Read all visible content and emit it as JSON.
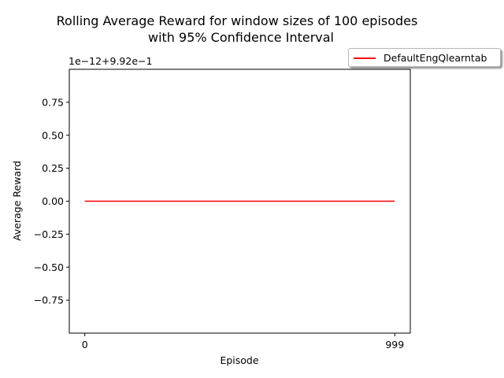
{
  "chart_data": {
    "type": "line",
    "title_line1": "Rolling Average Reward for window sizes of 100 episodes",
    "title_line2": "with 95% Confidence Interval",
    "xlabel": "Episode",
    "ylabel": "Average Reward",
    "offset_label": "1e−12+9.92e−1",
    "x_ticks": [
      {
        "value": 0,
        "label": "0"
      },
      {
        "value": 999,
        "label": "999"
      }
    ],
    "y_ticks": [
      {
        "value": 0.75,
        "label": "0.75"
      },
      {
        "value": 0.5,
        "label": "0.50"
      },
      {
        "value": 0.25,
        "label": "0.25"
      },
      {
        "value": 0.0,
        "label": "0.00"
      },
      {
        "value": -0.25,
        "label": "−0.25"
      },
      {
        "value": -0.5,
        "label": "−0.50"
      },
      {
        "value": -0.75,
        "label": "−0.75"
      }
    ],
    "xlim": [
      -50,
      1049
    ],
    "ylim": [
      -1.0,
      1.0
    ],
    "grid": false,
    "legend_position": "upper-right-outside",
    "series": [
      {
        "name": "DefaultEngQlearntab",
        "color": "#ff0000",
        "x": [
          0,
          999
        ],
        "y": [
          0,
          0
        ]
      }
    ]
  }
}
